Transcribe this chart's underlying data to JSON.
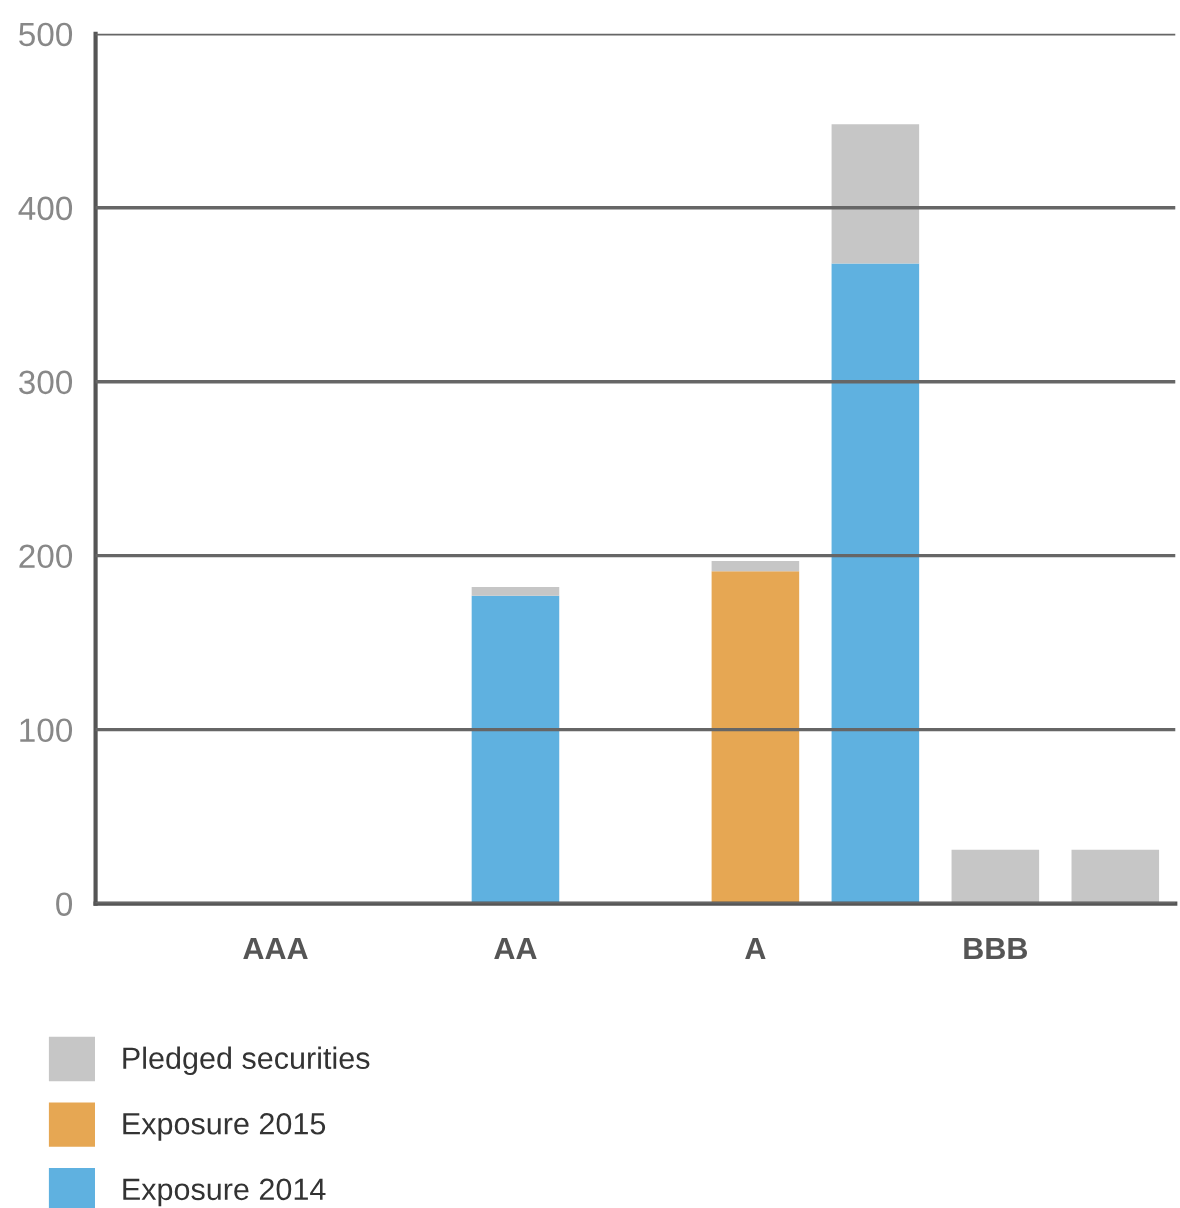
{
  "chart_data": {
    "type": "bar",
    "stacked": true,
    "categories": [
      null,
      "AAA",
      null,
      "AA",
      null,
      "A",
      null,
      "BBB",
      null
    ],
    "series": [
      {
        "name": "Exposure 2014",
        "color": "#5fb1e0",
        "values": [
          null,
          null,
          null,
          177,
          null,
          null,
          368,
          null,
          null
        ]
      },
      {
        "name": "Exposure 2015",
        "color": "#e6a753",
        "values": [
          null,
          null,
          null,
          null,
          null,
          191,
          null,
          null,
          null
        ]
      },
      {
        "name": "Pledged securities",
        "color": "#c6c6c6",
        "values": [
          null,
          null,
          null,
          5,
          null,
          6,
          80,
          31,
          31
        ]
      }
    ],
    "ylim": [
      0,
      500
    ],
    "yticks": [
      0,
      100,
      200,
      300,
      400,
      500
    ],
    "grid": "y",
    "legend": "bottom"
  }
}
